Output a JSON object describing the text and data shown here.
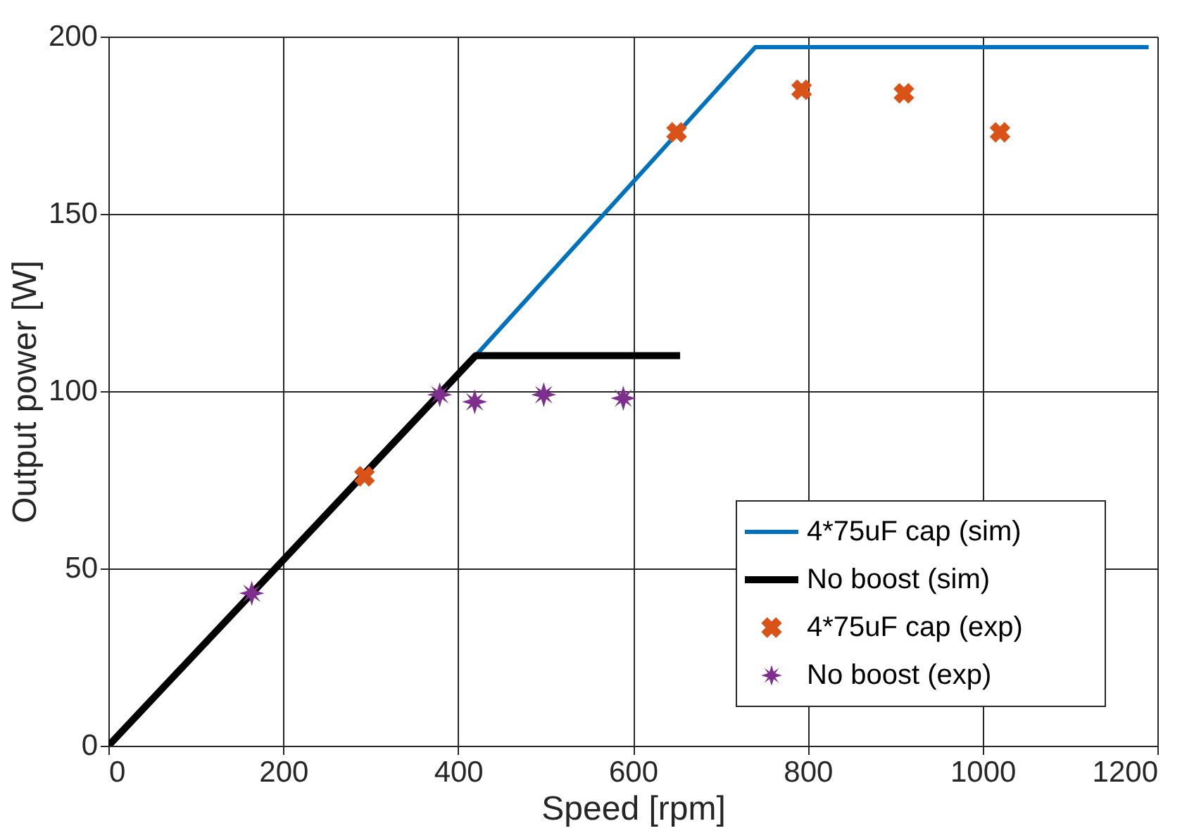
{
  "chart_data": {
    "type": "line",
    "xlabel": "Speed [rpm]",
    "ylabel": "Output power [W]",
    "xlim": [
      0,
      1200
    ],
    "ylim": [
      0,
      200
    ],
    "xticks": [
      0,
      200,
      400,
      600,
      800,
      1000,
      1200
    ],
    "yticks": [
      0,
      50,
      100,
      150,
      200
    ],
    "grid": true,
    "legend": "bottom right",
    "series": [
      {
        "name": "4*75uF cap (sim)",
        "color": "#0072bd",
        "x": [
          0,
          420,
          740,
          1190
        ],
        "values": [
          0,
          110,
          197,
          197
        ],
        "line_style": "solid"
      },
      {
        "name": "No boost (sim)",
        "color": "#000000",
        "x": [
          0,
          420,
          654
        ],
        "values": [
          0,
          110,
          110
        ],
        "line_style": "solid"
      },
      {
        "name": "4*75uF cap (exp)",
        "type": "scatter",
        "color": "#d95319",
        "x": [
          293,
          650,
          793,
          910,
          1020
        ],
        "values": [
          76,
          173,
          185,
          184,
          173
        ],
        "marker": "cross"
      },
      {
        "name": "No boost (exp)",
        "type": "scatter",
        "color": "#7e2f8e",
        "x": [
          164,
          379,
          419,
          498,
          589
        ],
        "values": [
          43,
          99,
          97,
          99,
          98
        ],
        "marker": "star"
      }
    ]
  }
}
